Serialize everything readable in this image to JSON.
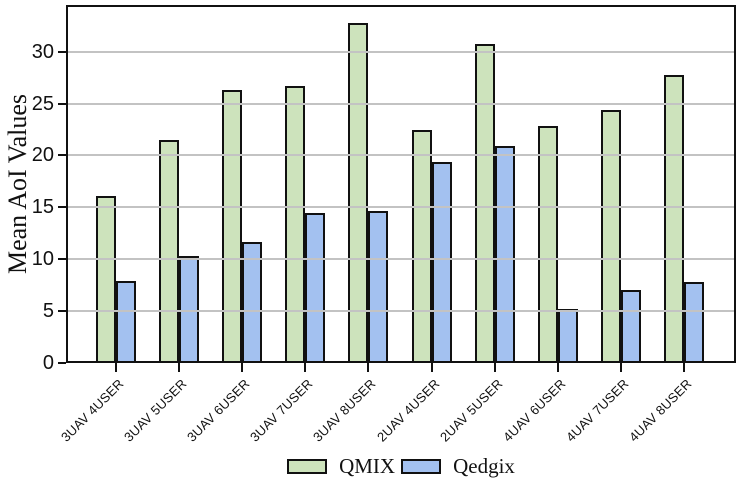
{
  "chart_data": {
    "type": "bar",
    "title": "",
    "xlabel": "",
    "ylabel": "Mean AoI Values",
    "categories": [
      "3UAV 4USER",
      "3UAV 5USER",
      "3UAV 6USER",
      "3UAV 7USER",
      "3UAV 8USER",
      "2UAV 4USER",
      "2UAV 5USER",
      "4UAV 6USER",
      "4UAV 7USER",
      "4UAV 8USER"
    ],
    "series": [
      {
        "name": "QMIX",
        "color": "#cde3bc",
        "values": [
          16.1,
          21.5,
          26.3,
          26.7,
          32.8,
          22.5,
          30.7,
          22.8,
          24.4,
          27.8
        ]
      },
      {
        "name": "Qedgix",
        "color": "#a3c1f0",
        "values": [
          7.9,
          10.3,
          11.7,
          14.5,
          14.7,
          19.4,
          20.9,
          5.2,
          7.0,
          7.8
        ]
      }
    ],
    "ylim": [
      0,
      34.5
    ],
    "yticks": [
      0,
      5,
      10,
      15,
      20,
      25,
      30
    ],
    "grid": true,
    "grid_on_top": true,
    "legend_position": "bottom-center",
    "x_tick_rotation": 45,
    "colors": {
      "bar_edge": "#111111",
      "gridline": "#c3c3c3",
      "axis": "#111111",
      "background": "#ffffff"
    }
  }
}
